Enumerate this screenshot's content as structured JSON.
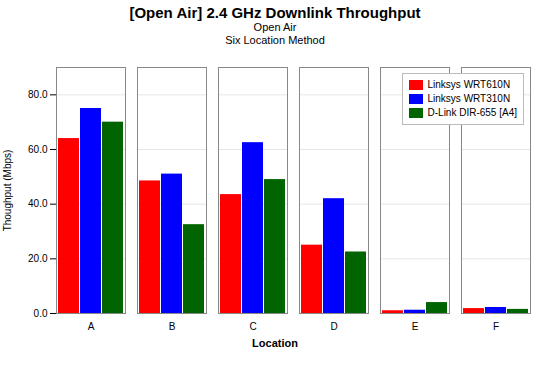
{
  "chart_data": {
    "type": "bar",
    "title": "[Open Air] 2.4 GHz Downlink Throughput",
    "subtitle": [
      "Open Air",
      "Six Location Method"
    ],
    "xlabel": "Location",
    "ylabel": "Thoughput (Mbps)",
    "categories": [
      "A",
      "B",
      "C",
      "D",
      "E",
      "F"
    ],
    "series": [
      {
        "name": "Linksys WRT610N",
        "color": "#ff0000",
        "values": [
          64.0,
          48.5,
          43.5,
          25.0,
          1.0,
          1.8
        ]
      },
      {
        "name": "Linksys WRT310N",
        "color": "#0000ff",
        "values": [
          75.0,
          51.0,
          62.5,
          42.0,
          1.2,
          2.2
        ]
      },
      {
        "name": "D-Link DIR-655 [A4]",
        "color": "#006400",
        "values": [
          70.0,
          32.5,
          49.0,
          22.5,
          4.0,
          1.5
        ]
      }
    ],
    "ylim": [
      0,
      90
    ],
    "yticks": [
      {
        "value": 0,
        "label": "0.0"
      },
      {
        "value": 20,
        "label": "20.0"
      },
      {
        "value": 40,
        "label": "40.0"
      },
      {
        "value": 60,
        "label": "60.0"
      },
      {
        "value": 80,
        "label": "80.0"
      }
    ],
    "grid": true,
    "legend": "upper right"
  }
}
